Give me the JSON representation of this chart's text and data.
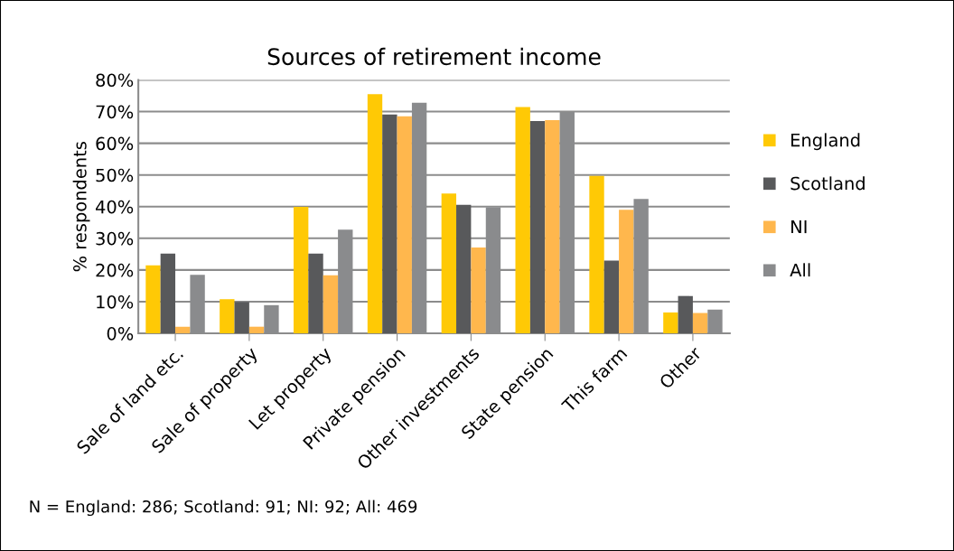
{
  "chart_data": {
    "type": "bar",
    "title": "Sources of retirement income",
    "ylabel": "% respondents",
    "categories": [
      "Sale of land etc.",
      "Sale of property",
      "Let property",
      "Private pension",
      "Other investments",
      "State pension",
      "This farm",
      "Other"
    ],
    "series": [
      {
        "name": "England",
        "color": "#ffc905",
        "values": [
          21.5,
          10.8,
          39.9,
          75.5,
          44.1,
          71.4,
          49.7,
          6.6
        ]
      },
      {
        "name": "Scotland",
        "color": "#58595b",
        "values": [
          25.2,
          9.9,
          25.2,
          69.1,
          40.6,
          67.0,
          23.0,
          11.8
        ]
      },
      {
        "name": "NI",
        "color": "#ffb74d",
        "values": [
          2.1,
          2.1,
          18.3,
          68.5,
          27.1,
          67.3,
          39.0,
          6.4
        ]
      },
      {
        "name": "All",
        "color": "#8a8b8d",
        "values": [
          18.5,
          8.9,
          32.7,
          72.8,
          39.8,
          69.9,
          42.4,
          7.5
        ]
      }
    ],
    "ylim": [
      0,
      80
    ],
    "yticks": [
      {
        "value": 0,
        "label": "0%"
      },
      {
        "value": 10,
        "label": "10%"
      },
      {
        "value": 20,
        "label": "20%"
      },
      {
        "value": 30,
        "label": "30%"
      },
      {
        "value": 40,
        "label": "40%"
      },
      {
        "value": 50,
        "label": "50%"
      },
      {
        "value": 60,
        "label": "60%"
      },
      {
        "value": 70,
        "label": "70%"
      },
      {
        "value": 80,
        "label": "80%"
      }
    ],
    "grid": "y",
    "legend": "right",
    "annotations": [
      "N = England: 286; Scotland: 91; NI: 92; All: 469"
    ]
  }
}
